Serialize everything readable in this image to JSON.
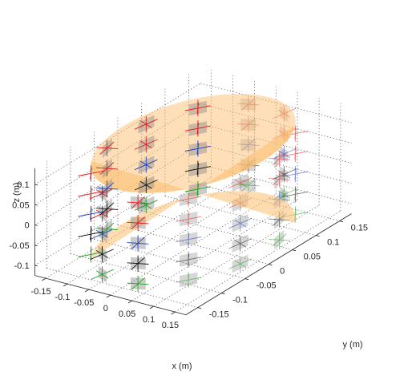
{
  "chart_data": {
    "type": "scatter",
    "title": "",
    "view": "3d",
    "grid": true,
    "xlabel": "x (m)",
    "ylabel": "y (m)",
    "zlabel": "z (m)",
    "xlim": [
      -0.175,
      0.175
    ],
    "ylim": [
      -0.175,
      0.175
    ],
    "zlim": [
      -0.125,
      0.14
    ],
    "xticks": [
      "-0.15",
      "-0.1",
      "-0.05",
      "0",
      "0.05",
      "0.1",
      "0.15"
    ],
    "yticks": [
      "-0.15",
      "-0.1",
      "-0.05",
      "0",
      "0.05",
      "0.1",
      "0.15"
    ],
    "zticks": [
      "-0.1",
      "-0.05",
      "0",
      "0.05",
      "0.1"
    ],
    "xtick_values": [
      -0.15,
      -0.1,
      -0.05,
      0,
      0.05,
      0.1,
      0.15
    ],
    "ytick_values": [
      -0.15,
      -0.1,
      -0.05,
      0,
      0.05,
      0.1,
      0.15
    ],
    "ztick_values": [
      -0.1,
      -0.05,
      0,
      0.05,
      0.1
    ],
    "cylinder": {
      "radius": 0.16,
      "z_min": -0.115,
      "z_max": 0.125,
      "color": "#fdbf6f",
      "opacity": 0.55
    },
    "markers": {
      "radius": 0.16,
      "per_ring": 12,
      "size": 0.02,
      "rings": [
        {
          "z": 0.1,
          "color": "#e41a1c"
        },
        {
          "z": 0.05,
          "color": "#e41a1c"
        },
        {
          "z": 0.0,
          "color": "#1f3fbf"
        },
        {
          "z": -0.05,
          "color": "#111111"
        },
        {
          "z": -0.1,
          "color": "#1fa01f"
        }
      ]
    },
    "windows": {
      "color": "#8c8c8c",
      "rows_z": [
        0.1,
        0.05,
        0.0,
        -0.05,
        -0.1
      ],
      "per_ring": 12,
      "size": 0.028
    }
  }
}
